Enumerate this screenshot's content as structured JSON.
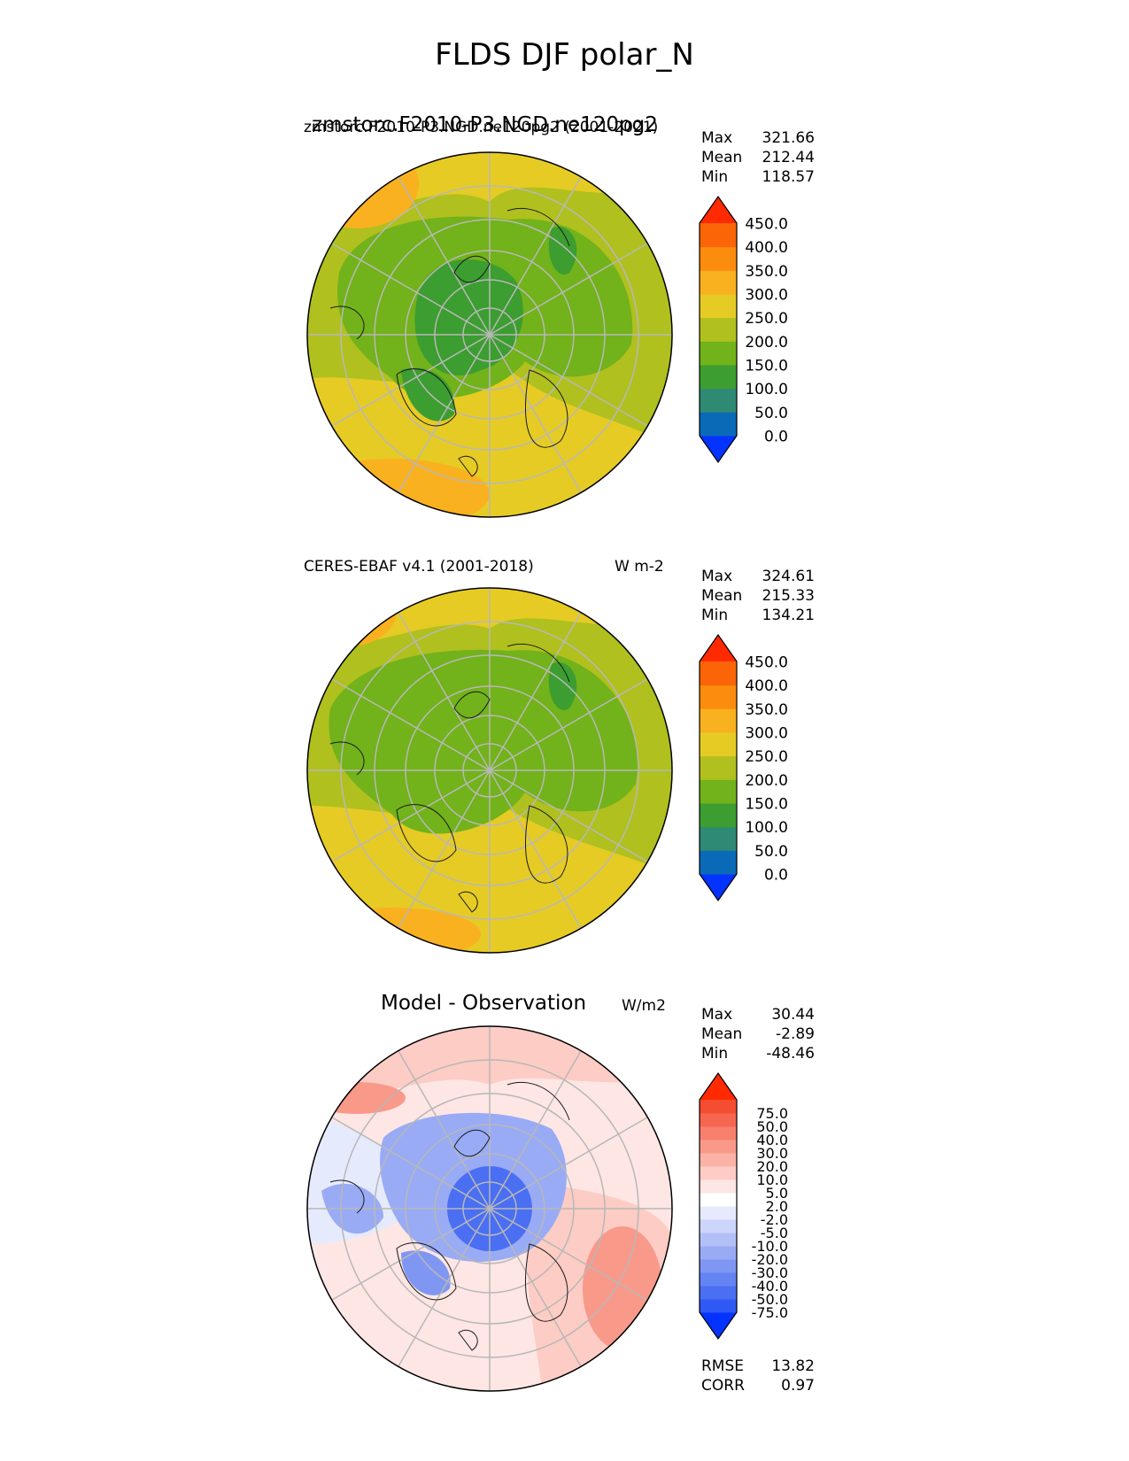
{
  "figure": {
    "title": "FLDS DJF polar_N"
  },
  "panels": [
    {
      "id": "model",
      "title_left": "zmstorc.F2010-P3.NGD.ne120pg2 (2001-2021)",
      "title_left_overlap": "zmstorc.F2010-P3.NGD.ne120pg2",
      "title_right": "",
      "stats": [
        {
          "label": "Max",
          "value": "321.66"
        },
        {
          "label": "Mean",
          "value": "212.44"
        },
        {
          "label": "Min",
          "value": "118.57"
        }
      ]
    },
    {
      "id": "obs",
      "title_left": "CERES-EBAF v4.1 (2001-2018)",
      "title_right": "W m-2",
      "stats": [
        {
          "label": "Max",
          "value": "324.61"
        },
        {
          "label": "Mean",
          "value": "215.33"
        },
        {
          "label": "Min",
          "value": "134.21"
        }
      ]
    },
    {
      "id": "diff",
      "title_center": "Model - Observation",
      "title_right": "W/m2",
      "stats": [
        {
          "label": "Max",
          "value": "30.44"
        },
        {
          "label": "Mean",
          "value": "-2.89"
        },
        {
          "label": "Min",
          "value": "-48.46"
        }
      ],
      "metrics": [
        {
          "label": "RMSE",
          "value": "13.82"
        },
        {
          "label": "CORR",
          "value": "0.97"
        }
      ]
    }
  ],
  "colorbars": {
    "field": {
      "colors": [
        "#0433ff",
        "#0a6ab8",
        "#2f8a74",
        "#3c9d30",
        "#72b21a",
        "#b0c01e",
        "#e6cb25",
        "#fab11f",
        "#fb8c0e",
        "#fb6507",
        "#ff2a00"
      ],
      "tick_labels": [
        "0.0",
        "50.0",
        "100.0",
        "150.0",
        "200.0",
        "250.0",
        "300.0",
        "350.0",
        "400.0",
        "450.0"
      ]
    },
    "diff": {
      "colors": [
        "#0433ff",
        "#3058f5",
        "#4a6ff2",
        "#6584f3",
        "#7f97f3",
        "#99abf5",
        "#b3c0f7",
        "#ccd5fa",
        "#e6eafd",
        "#ffffff",
        "#fde6e3",
        "#fcccc5",
        "#fbb3a8",
        "#f9998a",
        "#f8806d",
        "#f6664f",
        "#f54d32",
        "#ff2a00"
      ],
      "tick_labels": [
        "-75.0",
        "-50.0",
        "-40.0",
        "-30.0",
        "-20.0",
        "-10.0",
        "-5.0",
        "-2.0",
        "2.0",
        "5.0",
        "10.0",
        "20.0",
        "30.0",
        "40.0",
        "50.0",
        "75.0"
      ]
    }
  },
  "chart_data": {
    "type": "heatmap",
    "projection": "north polar stereographic",
    "variable": "FLDS",
    "season": "DJF",
    "region": "polar_N",
    "panels": [
      {
        "name": "zmstorc.F2010-P3.NGD.ne120pg2 (2001-2021)",
        "max": 321.66,
        "mean": 212.44,
        "min": 118.57,
        "levels": [
          0,
          50,
          100,
          150,
          200,
          250,
          300,
          350,
          400,
          450
        ],
        "extend": "both"
      },
      {
        "name": "CERES-EBAF v4.1 (2001-2018)",
        "units": "W m-2",
        "max": 324.61,
        "mean": 215.33,
        "min": 134.21,
        "levels": [
          0,
          50,
          100,
          150,
          200,
          250,
          300,
          350,
          400,
          450
        ],
        "extend": "both"
      },
      {
        "name": "Model - Observation",
        "units": "W/m2",
        "max": 30.44,
        "mean": -2.89,
        "min": -48.46,
        "levels": [
          -75,
          -50,
          -40,
          -30,
          -20,
          -10,
          -5,
          -2,
          2,
          5,
          10,
          20,
          30,
          40,
          50,
          75
        ],
        "extend": "both",
        "rmse": 13.82,
        "corr": 0.97
      }
    ]
  }
}
